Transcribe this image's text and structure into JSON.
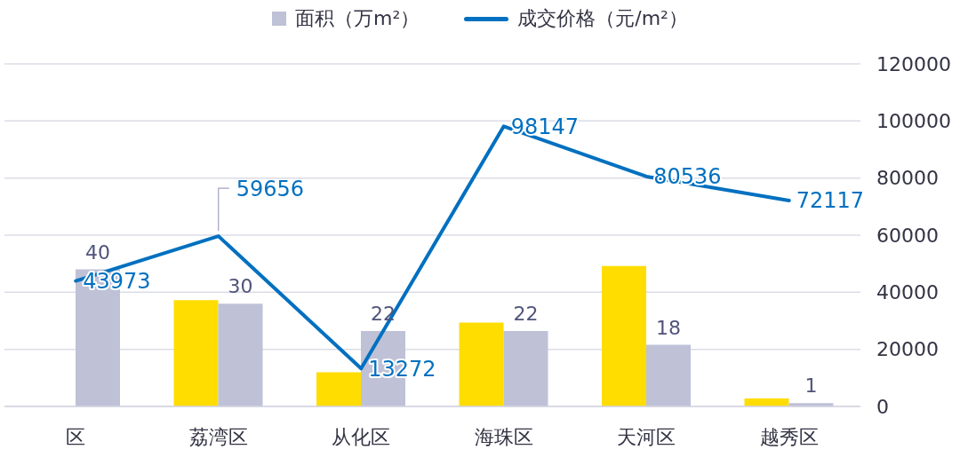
{
  "chart_data": {
    "type": "bar",
    "categories": [
      "区",
      "荔湾区",
      "从化区",
      "海珠区",
      "天河区",
      "越秀区"
    ],
    "series": [
      {
        "color": "#ffdd00",
        "values": [
          null,
          31,
          10,
          24.5,
          41,
          2.3
        ]
      },
      {
        "name": "面积（万m²）",
        "color": "#bfc1d7",
        "values": [
          40,
          30,
          22,
          22,
          18,
          1
        ],
        "value_labels": [
          "40",
          "30",
          "22",
          "22",
          "18",
          "1"
        ]
      },
      {
        "name": "成交价格（元/m²）",
        "type": "line",
        "axis": "y2",
        "color": "#0070c0",
        "values": [
          43973,
          59656,
          13272,
          98147,
          80536,
          72117
        ],
        "value_labels": [
          "43973",
          "59656",
          "13272",
          "98147",
          "80536",
          "72117"
        ]
      }
    ],
    "ylim": [
      0,
      100
    ],
    "y2lim": [
      0,
      120000
    ],
    "y2ticks": [
      0,
      20000,
      40000,
      60000,
      80000,
      100000,
      120000
    ],
    "grid": "y",
    "legend": "top"
  }
}
